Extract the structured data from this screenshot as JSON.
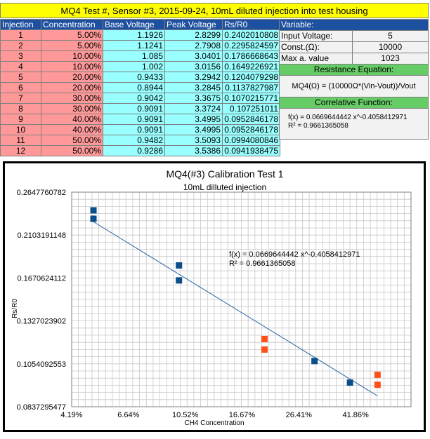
{
  "sheet_title": "MQ4 Test #, Sensor #3, 2015-09-24, 10mL diluted injection into test housing",
  "table": {
    "headers": [
      "Injection",
      "Concentration",
      "Base Voltage",
      "Peak Voltage",
      "Rs/R0"
    ],
    "rows": [
      [
        "1",
        "5.00%",
        "1.1926",
        "2.8299",
        "0.2402010808"
      ],
      [
        "2",
        "5.00%",
        "1.1241",
        "2.7908",
        "0.2295824597"
      ],
      [
        "3",
        "10.00%",
        "1.085",
        "3.0401",
        "0.1786668643"
      ],
      [
        "4",
        "10.00%",
        "1.002",
        "3.0156",
        "0.1649226921"
      ],
      [
        "5",
        "20.00%",
        "0.9433",
        "3.2942",
        "0.1204079298"
      ],
      [
        "6",
        "20.00%",
        "0.8944",
        "3.2845",
        "0.1137827987"
      ],
      [
        "7",
        "30.00%",
        "0.9042",
        "3.3675",
        "0.1070215771"
      ],
      [
        "8",
        "30.00%",
        "0.9091",
        "3.3724",
        "0.107251011"
      ],
      [
        "9",
        "40.00%",
        "0.9091",
        "3.4995",
        "0.0952846178"
      ],
      [
        "10",
        "40.00%",
        "0.9091",
        "3.4995",
        "0.0952846178"
      ],
      [
        "11",
        "50.00%",
        "0.9482",
        "3.5093",
        "0.0994080846"
      ],
      [
        "12",
        "50.00%",
        "0.9286",
        "3.5386",
        "0.0941938475"
      ]
    ]
  },
  "variables": {
    "header": "Variable:",
    "rows": [
      {
        "k": "Input Voltage:",
        "v": "5"
      },
      {
        "k": "Const.(Ω):",
        "v": "10000"
      },
      {
        "k": "Max  a. value",
        "v": "1023"
      }
    ],
    "resistance_title": "Resistance Equation:",
    "resistance_eq": "MQ4(Ω) = (10000Ω*(Vin-Vout))/Vout",
    "correlative_title": "Correlative Function:",
    "corr_line1": "f(x) = 0.0669644442 x^-0.4058412971",
    "corr_line2": "R² = 0.9661365058"
  },
  "colors": {
    "header_blue": "#1e50a0",
    "pink": "#ff9999",
    "cyan": "#99ffff",
    "yellow": "#ffff00",
    "green": "#66cc66",
    "series_blue": "#0b4f8a",
    "series_orange": "#ff4f1a",
    "trendline": "#1f5fa0"
  },
  "chart_data": {
    "type": "scatter",
    "title": "MQ4(#3) Calibration Test 1",
    "subtitle": "10mL dilluted injection",
    "xlabel": "CH4 Concentration",
    "ylabel": "Rs/R0",
    "x_scale": "log",
    "xlim": [
      4.19,
      65.6
    ],
    "ylim": [
      0.0837295477,
      0.2647760782
    ],
    "x_ticks": [
      "4.19%",
      "6.64%",
      "10.52%",
      "16.67%",
      "26.41%",
      "41.86%"
    ],
    "x_tick_values": [
      4.19,
      6.64,
      10.52,
      16.67,
      26.41,
      41.86
    ],
    "y_ticks": [
      "0.2647760782",
      "0.2103191148",
      "0.1670624112",
      "0.1327023902",
      "0.1054092553",
      "0.0837295477"
    ],
    "y_tick_values": [
      0.2647760782,
      0.2103191148,
      0.1670624112,
      0.1327023902,
      0.1054092553,
      0.0837295477
    ],
    "grid": true,
    "series": [
      {
        "color": "#0b4f8a",
        "points": [
          [
            5,
            0.2402
          ],
          [
            5,
            0.2296
          ],
          [
            10,
            0.1787
          ],
          [
            10,
            0.1649
          ],
          [
            30,
            0.107
          ],
          [
            40,
            0.0953
          ]
        ]
      },
      {
        "color": "#ff4f1a",
        "points": [
          [
            20,
            0.1204
          ],
          [
            20,
            0.1138
          ],
          [
            50,
            0.0994
          ],
          [
            50,
            0.0942
          ]
        ]
      }
    ],
    "trendline": {
      "coef": 0.0669644442,
      "exp": -0.4058412971,
      "x_range": [
        5,
        50
      ]
    },
    "annotation": [
      "f(x) = 0.0669644442 x^-0.4058412971",
      "R² = 0.9661365058"
    ]
  }
}
